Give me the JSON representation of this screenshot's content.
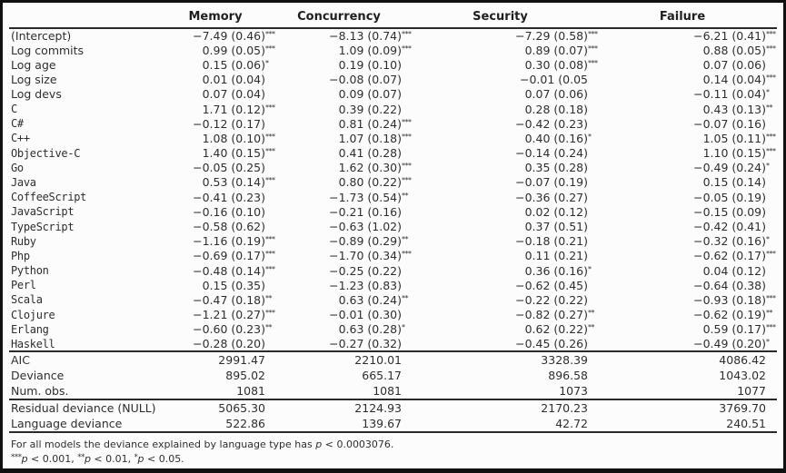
{
  "table": {
    "headers": [
      "Memory",
      "Concurrency",
      "Security",
      "Failure"
    ],
    "coefficient_rows": [
      {
        "label": "(Intercept)",
        "mono": false,
        "cells": [
          {
            "v": "−7.49 (0.46)",
            "s": "***"
          },
          {
            "v": "−8.13 (0.74)",
            "s": "***"
          },
          {
            "v": "−7.29 (0.58)",
            "s": "***"
          },
          {
            "v": "−6.21 (0.41)",
            "s": "***"
          }
        ]
      },
      {
        "label": "Log commits",
        "mono": false,
        "cells": [
          {
            "v": "0.99 (0.05)",
            "s": "***"
          },
          {
            "v": "1.09 (0.09)",
            "s": "***"
          },
          {
            "v": "0.89 (0.07)",
            "s": "***"
          },
          {
            "v": "0.88 (0.05)",
            "s": "***"
          }
        ]
      },
      {
        "label": "Log age",
        "mono": false,
        "cells": [
          {
            "v": "0.15 (0.06)",
            "s": "*"
          },
          {
            "v": "0.19 (0.10)",
            "s": ""
          },
          {
            "v": "0.30 (0.08)",
            "s": "***"
          },
          {
            "v": "0.07 (0.06)",
            "s": ""
          }
        ]
      },
      {
        "label": "Log size",
        "mono": false,
        "cells": [
          {
            "v": "0.01 (0.04)",
            "s": ""
          },
          {
            "v": "−0.08 (0.07)",
            "s": ""
          },
          {
            "v": "−0.01 (0.05",
            "s": ""
          },
          {
            "v": "0.14 (0.04)",
            "s": "***"
          }
        ]
      },
      {
        "label": "Log devs",
        "mono": false,
        "cells": [
          {
            "v": "0.07 (0.04)",
            "s": ""
          },
          {
            "v": "0.09 (0.07)",
            "s": ""
          },
          {
            "v": "0.07 (0.06)",
            "s": ""
          },
          {
            "v": "−0.11 (0.04)",
            "s": "*"
          }
        ]
      },
      {
        "label": "C",
        "mono": true,
        "cells": [
          {
            "v": "1.71 (0.12)",
            "s": "***"
          },
          {
            "v": "0.39 (0.22)",
            "s": ""
          },
          {
            "v": "0.28 (0.18)",
            "s": ""
          },
          {
            "v": "0.43 (0.13)",
            "s": "**"
          }
        ]
      },
      {
        "label": "C#",
        "mono": true,
        "cells": [
          {
            "v": "−0.12 (0.17)",
            "s": ""
          },
          {
            "v": "0.81 (0.24)",
            "s": "***"
          },
          {
            "v": "−0.42 (0.23)",
            "s": ""
          },
          {
            "v": "−0.07 (0.16)",
            "s": ""
          }
        ]
      },
      {
        "label": "C++",
        "mono": true,
        "cells": [
          {
            "v": "1.08 (0.10)",
            "s": "***"
          },
          {
            "v": "1.07 (0.18)",
            "s": "***"
          },
          {
            "v": "0.40 (0.16)",
            "s": "*"
          },
          {
            "v": "1.05 (0.11)",
            "s": "***"
          }
        ]
      },
      {
        "label": "Objective-C",
        "mono": true,
        "cells": [
          {
            "v": "1.40 (0.15)",
            "s": "***"
          },
          {
            "v": "0.41 (0.28)",
            "s": ""
          },
          {
            "v": "−0.14 (0.24)",
            "s": ""
          },
          {
            "v": "1.10 (0.15)",
            "s": "***"
          }
        ]
      },
      {
        "label": "Go",
        "mono": true,
        "cells": [
          {
            "v": "−0.05 (0.25)",
            "s": ""
          },
          {
            "v": "1.62 (0.30)",
            "s": "***"
          },
          {
            "v": "0.35 (0.28)",
            "s": ""
          },
          {
            "v": "−0.49 (0.24)",
            "s": "*"
          }
        ]
      },
      {
        "label": "Java",
        "mono": true,
        "cells": [
          {
            "v": "0.53 (0.14)",
            "s": "***"
          },
          {
            "v": "0.80 (0.22)",
            "s": "***"
          },
          {
            "v": "−0.07 (0.19)",
            "s": ""
          },
          {
            "v": "0.15 (0.14)",
            "s": ""
          }
        ]
      },
      {
        "label": "CoffeeScript",
        "mono": true,
        "cells": [
          {
            "v": "−0.41 (0.23)",
            "s": ""
          },
          {
            "v": "−1.73 (0.54)",
            "s": "**"
          },
          {
            "v": "−0.36 (0.27)",
            "s": ""
          },
          {
            "v": "−0.05 (0.19)",
            "s": ""
          }
        ]
      },
      {
        "label": "JavaScript",
        "mono": true,
        "cells": [
          {
            "v": "−0.16 (0.10)",
            "s": ""
          },
          {
            "v": "−0.21 (0.16)",
            "s": ""
          },
          {
            "v": "0.02 (0.12)",
            "s": ""
          },
          {
            "v": "−0.15 (0.09)",
            "s": ""
          }
        ]
      },
      {
        "label": "TypeScript",
        "mono": true,
        "cells": [
          {
            "v": "−0.58 (0.62)",
            "s": ""
          },
          {
            "v": "−0.63 (1.02)",
            "s": ""
          },
          {
            "v": "0.37 (0.51)",
            "s": ""
          },
          {
            "v": "−0.42 (0.41)",
            "s": ""
          }
        ]
      },
      {
        "label": "Ruby",
        "mono": true,
        "cells": [
          {
            "v": "−1.16 (0.19)",
            "s": "***"
          },
          {
            "v": "−0.89 (0.29)",
            "s": "**"
          },
          {
            "v": "−0.18 (0.21)",
            "s": ""
          },
          {
            "v": "−0.32 (0.16)",
            "s": "*"
          }
        ]
      },
      {
        "label": "Php",
        "mono": true,
        "cells": [
          {
            "v": "−0.69 (0.17)",
            "s": "***"
          },
          {
            "v": "−1.70 (0.34)",
            "s": "***"
          },
          {
            "v": "0.11 (0.21)",
            "s": ""
          },
          {
            "v": "−0.62 (0.17)",
            "s": "***"
          }
        ]
      },
      {
        "label": "Python",
        "mono": true,
        "cells": [
          {
            "v": "−0.48 (0.14)",
            "s": "***"
          },
          {
            "v": "−0.25 (0.22)",
            "s": ""
          },
          {
            "v": "0.36 (0.16)",
            "s": "*"
          },
          {
            "v": "0.04 (0.12)",
            "s": ""
          }
        ]
      },
      {
        "label": "Perl",
        "mono": true,
        "cells": [
          {
            "v": "0.15 (0.35)",
            "s": ""
          },
          {
            "v": "−1.23 (0.83)",
            "s": ""
          },
          {
            "v": "−0.62 (0.45)",
            "s": ""
          },
          {
            "v": "−0.64 (0.38)",
            "s": ""
          }
        ]
      },
      {
        "label": "Scala",
        "mono": true,
        "cells": [
          {
            "v": "−0.47 (0.18)",
            "s": "**"
          },
          {
            "v": "0.63 (0.24)",
            "s": "**"
          },
          {
            "v": "−0.22 (0.22)",
            "s": ""
          },
          {
            "v": "−0.93 (0.18)",
            "s": "***"
          }
        ]
      },
      {
        "label": "Clojure",
        "mono": true,
        "cells": [
          {
            "v": "−1.21 (0.27)",
            "s": "***"
          },
          {
            "v": "−0.01 (0.30)",
            "s": ""
          },
          {
            "v": "−0.82 (0.27)",
            "s": "**"
          },
          {
            "v": "−0.62 (0.19)",
            "s": "**"
          }
        ]
      },
      {
        "label": "Erlang",
        "mono": true,
        "cells": [
          {
            "v": "−0.60 (0.23)",
            "s": "**"
          },
          {
            "v": "0.63 (0.28)",
            "s": "*"
          },
          {
            "v": "0.62 (0.22)",
            "s": "**"
          },
          {
            "v": "0.59 (0.17)",
            "s": "***"
          }
        ]
      },
      {
        "label": "Haskell",
        "mono": true,
        "cells": [
          {
            "v": "−0.28 (0.20)",
            "s": ""
          },
          {
            "v": "−0.27 (0.32)",
            "s": ""
          },
          {
            "v": "−0.45 (0.26)",
            "s": ""
          },
          {
            "v": "−0.49 (0.20)",
            "s": "*"
          }
        ]
      }
    ],
    "summary_rows": [
      {
        "label": "AIC",
        "mono": false,
        "cells": [
          {
            "v": "2991.47",
            "s": ""
          },
          {
            "v": "2210.01",
            "s": ""
          },
          {
            "v": "3328.39",
            "s": ""
          },
          {
            "v": "4086.42",
            "s": ""
          }
        ]
      },
      {
        "label": "Deviance",
        "mono": false,
        "cells": [
          {
            "v": "895.02",
            "s": ""
          },
          {
            "v": "665.17",
            "s": ""
          },
          {
            "v": "896.58",
            "s": ""
          },
          {
            "v": "1043.02",
            "s": ""
          }
        ]
      },
      {
        "label": "Num. obs.",
        "mono": false,
        "cells": [
          {
            "v": "1081",
            "s": ""
          },
          {
            "v": "1081",
            "s": ""
          },
          {
            "v": "1073",
            "s": ""
          },
          {
            "v": "1077",
            "s": ""
          }
        ]
      }
    ],
    "deviance_rows": [
      {
        "label": "Residual deviance (NULL)",
        "mono": false,
        "cells": [
          {
            "v": "5065.30",
            "s": ""
          },
          {
            "v": "2124.93",
            "s": ""
          },
          {
            "v": "2170.23",
            "s": ""
          },
          {
            "v": "3769.70",
            "s": ""
          }
        ]
      },
      {
        "label": "Language deviance",
        "mono": false,
        "cells": [
          {
            "v": "522.86",
            "s": ""
          },
          {
            "v": "139.67",
            "s": ""
          },
          {
            "v": "42.72",
            "s": ""
          },
          {
            "v": "240.51",
            "s": ""
          }
        ]
      }
    ]
  },
  "footnotes": {
    "p": "p",
    "note_prefix": "For all models the deviance explained by language type has ",
    "note_suffix": " < 0.0003076.",
    "sig": [
      {
        "stars": "***",
        "text": " < 0.001, "
      },
      {
        "stars": "**",
        "text": " < 0.01, "
      },
      {
        "stars": "*",
        "text": " < 0.05."
      }
    ]
  },
  "colors": {
    "background": "#fcfcfc",
    "border": "#101010",
    "rule": "#2a2a2a",
    "text": "#2e2e2e"
  }
}
